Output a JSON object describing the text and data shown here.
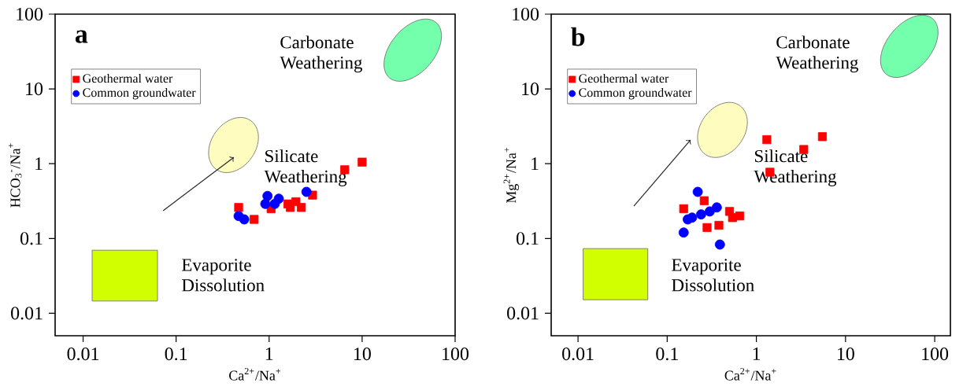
{
  "chart_data": [
    {
      "type": "scatter",
      "xlabel": "Ca$^{2+}$/Na$^{+}$",
      "ylabel": "HCO$_{3}$$^{-}$/Na$^{+}$",
      "log": "xy",
      "grid": false,
      "legend": "top left",
      "xlim": [
        0.005,
        100
      ],
      "ylim": [
        0.005,
        100
      ],
      "xticks": [
        0.01,
        0.1,
        1,
        10,
        100
      ],
      "yticks": [
        0.01,
        0.1,
        1,
        10,
        100
      ],
      "annotations": [
        "a",
        "Carbonate Weathering",
        "Silicate Weathering",
        "Evaporite Dissolution"
      ],
      "series": [
        {
          "name": "Geothermal water",
          "color": "#ff0000",
          "marker": "square",
          "x": [
            0.47,
            0.69,
            1.05,
            1.59,
            1.69,
            1.94,
            2.22,
            2.93,
            6.5,
            10
          ],
          "values": [
            0.26,
            0.18,
            0.25,
            0.29,
            0.26,
            0.31,
            0.26,
            0.38,
            0.83,
            1.05
          ]
        },
        {
          "name": "Common groundwater",
          "color": "#0000ff",
          "marker": "circle",
          "x": [
            0.47,
            0.54,
            0.96,
            0.91,
            1.15,
            1.27,
            2.52
          ],
          "values": [
            0.2,
            0.18,
            0.37,
            0.29,
            0.29,
            0.34,
            0.42
          ]
        }
      ]
    },
    {
      "type": "scatter",
      "xlabel": "Ca$^{2+}$/Na$^{+}$",
      "ylabel": "Mg$^{2+}$/Na$^{+}$",
      "log": "xy",
      "grid": false,
      "legend": "top left",
      "xlim": [
        0.005,
        150
      ],
      "ylim": [
        0.005,
        100
      ],
      "xticks": [
        0.01,
        0.1,
        1,
        10,
        100
      ],
      "yticks": [
        0.01,
        0.1,
        1,
        10,
        100
      ],
      "annotations": [
        "b",
        "Carbonate Weathering",
        "Silicate Weathering",
        "Evaporite Dissolution"
      ],
      "series": [
        {
          "name": "Geothermal water",
          "color": "#ff0000",
          "marker": "square",
          "x": [
            1.31,
            5.5,
            3.4,
            1.42,
            0.153,
            0.26,
            0.28,
            0.38,
            0.5,
            0.54,
            0.65
          ],
          "values": [
            2.1,
            2.3,
            1.55,
            0.77,
            0.25,
            0.32,
            0.14,
            0.15,
            0.23,
            0.19,
            0.2
          ]
        },
        {
          "name": "Common groundwater",
          "color": "#0000ff",
          "marker": "circle",
          "x": [
            0.22,
            0.153,
            0.17,
            0.19,
            0.24,
            0.3,
            0.36,
            0.39
          ],
          "values": [
            0.42,
            0.12,
            0.18,
            0.19,
            0.21,
            0.23,
            0.26,
            0.083
          ]
        }
      ]
    }
  ]
}
